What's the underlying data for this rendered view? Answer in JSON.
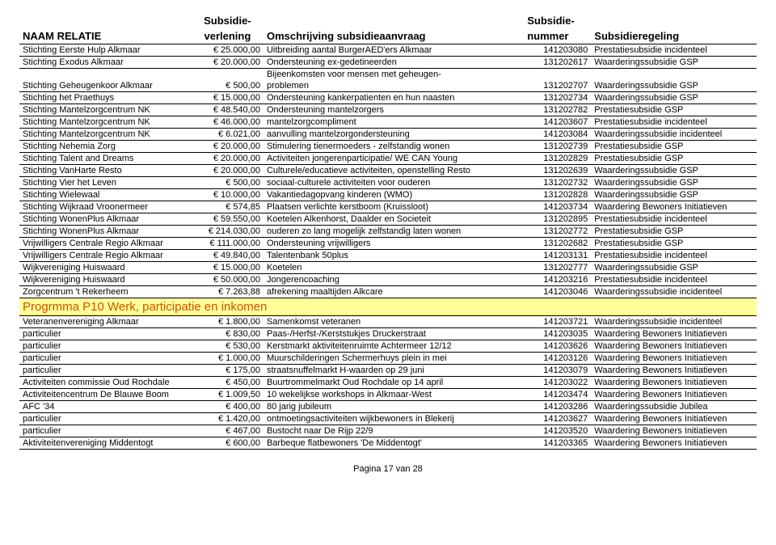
{
  "header": {
    "col1": "NAAM RELATIE",
    "col2_l1": "Subsidie-",
    "col2_l2": "verlening",
    "col3": "Omschrijving subsidieaanvraag",
    "col4_l1": "Subsidie-",
    "col4_l2": "nummer",
    "col5": "Subsidieregeling"
  },
  "rows1": [
    {
      "name": "Stichting Eerste Hulp Alkmaar",
      "amt": "€ 25.000,00",
      "desc": "Uitbreiding aantal BurgerAED'ers Alkmaar",
      "nr": "141203080",
      "reg": "Prestatiesubsidie incidenteel"
    },
    {
      "name": "Stichting Exodus Alkmaar",
      "amt": "€ 20.000,00",
      "desc": "Ondersteuning ex-gedetineerden",
      "nr": "131202617",
      "reg": "Waarderingssubsidie GSP"
    },
    {
      "name": "",
      "amt": "",
      "desc": "Bijeenkomsten voor mensen met geheugen-",
      "nr": "",
      "reg": ""
    },
    {
      "name": "Stichting Geheugenkoor Alkmaar",
      "amt": "€ 500,00",
      "desc": "problemen",
      "nr": "131202707",
      "reg": "Waarderingssubsidie GSP"
    },
    {
      "name": "Stichting het Praethuys",
      "amt": "€ 15.000,00",
      "desc": "Ondersteuning kankerpatienten en hun naasten",
      "nr": "131202734",
      "reg": "Waarderingssubsidie GSP"
    },
    {
      "name": "Stichting Mantelzorgcentrum NK",
      "amt": "€ 48.540,00",
      "desc": "Ondersteuning mantelzorgers",
      "nr": "131202782",
      "reg": "Prestatiesubsidie GSP"
    },
    {
      "name": "Stichting Mantelzorgcentrum NK",
      "amt": "€ 46.000,00",
      "desc": "mantelzorgcompliment",
      "nr": "141203607",
      "reg": "Prestatiesubsidie incidenteel"
    },
    {
      "name": "Stichting Mantelzorgcentrum NK",
      "amt": "€ 6.021,00",
      "desc": "aanvulling mantelzorgondersteuning",
      "nr": "141203084",
      "reg": "Waarderingssubsidie incidenteel"
    },
    {
      "name": "Stichting Nehemia Zorg",
      "amt": "€ 20.000,00",
      "desc": "Stimulering tienermoeders - zelfstandig wonen",
      "nr": "131202739",
      "reg": "Prestatiesubsidie GSP"
    },
    {
      "name": "Stichting Talent and Dreams",
      "amt": "€ 20.000,00",
      "desc": "Activiteiten jongerenparticipatie/ WE CAN Young",
      "nr": "131202829",
      "reg": "Prestatiesubsidie GSP"
    },
    {
      "name": "Stichting VanHarte Resto",
      "amt": "€ 20.000,00",
      "desc": "Culturele/educatieve activiteiten, openstelling Resto",
      "nr": "131202639",
      "reg": "Waarderingssubsidie GSP"
    },
    {
      "name": "Stichting Vier het Leven",
      "amt": "€ 500,00",
      "desc": "sociaal-culturele activiteiten voor ouderen",
      "nr": "131202732",
      "reg": "Waarderingssubsidie GSP"
    },
    {
      "name": "Stichting Wielewaal",
      "amt": "€ 10.000,00",
      "desc": "Vakantiedagopvang kinderen (WMO)",
      "nr": "131202828",
      "reg": "Waarderingssubsidie GSP"
    },
    {
      "name": "Stichting Wijkraad Vroonermeer",
      "amt": "€ 574,85",
      "desc": "Plaatsen verlichte kerstboom (Kruissloot)",
      "nr": "141203734",
      "reg": "Waardering Bewoners Initiatieven"
    },
    {
      "name": "Stichting WonenPlus Alkmaar",
      "amt": "€ 59.550,00",
      "desc": "Koetelen Alkenhorst, Daalder en Societeit",
      "nr": "131202895",
      "reg": "Prestatiesubsidie incidenteel"
    },
    {
      "name": "Stichting WonenPlus Alkmaar",
      "amt": "€ 214.030,00",
      "desc": "ouderen zo lang mogelijk zelfstandig laten wonen",
      "nr": "131202772",
      "reg": "Prestatiesubsidie GSP"
    },
    {
      "name": "Vrijwilligers Centrale Regio Alkmaar",
      "amt": "€ 111.000,00",
      "desc": "Ondersteuning vrijwilligers",
      "nr": "131202682",
      "reg": "Prestatiesubsidie GSP"
    },
    {
      "name": "Vrijwilligers Centrale Regio Alkmaar",
      "amt": "€ 49.840,00",
      "desc": "Talentenbank 50plus",
      "nr": "141203131",
      "reg": "Prestatiesubsidie incidenteel"
    },
    {
      "name": "Wijkvereniging Huiswaard",
      "amt": "€ 15.000,00",
      "desc": "Koetelen",
      "nr": "131202777",
      "reg": "Waarderingssubsidie GSP"
    },
    {
      "name": "Wijkvereniging Huiswaard",
      "amt": "€ 50.000,00",
      "desc": "Jongerencoaching",
      "nr": "141203216",
      "reg": "Prestatiesubsidie incidenteel"
    },
    {
      "name": "Zorgcentrum 't Rekerheem",
      "amt": "€ 7.263,88",
      "desc": "afrekening maaltijden Alkcare",
      "nr": "141203046",
      "reg": "Waarderingssubsidie incidenteel"
    }
  ],
  "section2": "Progrmma P10 Werk, participatie en inkomen",
  "rows2_first": {
    "name": "Veteranenvereniging Alkmaar",
    "amt": "€ 1.800,00",
    "desc": "Samenkomst veteranen",
    "nr": "141203721",
    "reg": "Waarderingssubsidie incidenteel"
  },
  "rows2": [
    {
      "name": "particulier",
      "amt": "€ 830,00",
      "desc": "Paas-/Herfst-/Kerststukjes Druckerstraat",
      "nr": "141203035",
      "reg": "Waardering Bewoners Initiatieven"
    },
    {
      "name": "particulier",
      "amt": "€ 530,00",
      "desc": "Kerstmarkt aktiviteitenruimte Achtermeer 12/12",
      "nr": "141203626",
      "reg": "Waardering Bewoners Initiatieven"
    },
    {
      "name": "particulier",
      "amt": "€ 1.000,00",
      "desc": "Muurschilderingen Schermerhuys plein in mei",
      "nr": "141203126",
      "reg": "Waardering Bewoners Initiatieven"
    },
    {
      "name": "particulier",
      "amt": "€ 175,00",
      "desc": "straatsnuffelmarkt H-waarden op 29 juni",
      "nr": "141203079",
      "reg": "Waardering Bewoners Initiatieven"
    },
    {
      "name": "Activiteiten commissie Oud Rochdale",
      "amt": "€ 450,00",
      "desc": "Buurtrommelmarkt Oud Rochdale op 14 april",
      "nr": "141203022",
      "reg": "Waardering Bewoners Initiatieven"
    },
    {
      "name": "Activiteitencentrum De Blauwe Boom",
      "amt": "€ 1.009,50",
      "desc": "10 wekelijkse workshops in Alkmaar-West",
      "nr": "141203474",
      "reg": "Waardering Bewoners Initiatieven"
    },
    {
      "name": "AFC '34",
      "amt": "€ 400,00",
      "desc": "80 jarig jubileum",
      "nr": "141203286",
      "reg": "Waarderingssubsidie Jubilea"
    },
    {
      "name": "particulier",
      "amt": "€ 1.420,00",
      "desc": "ontmoetingsactiviteiten wijkbewoners in Blekerij",
      "nr": "141203627",
      "reg": "Waardering Bewoners Initiatieven"
    },
    {
      "name": "particulier",
      "amt": "€ 467,00",
      "desc": "Bustocht naar De Rijp 22/9",
      "nr": "141203520",
      "reg": "Waardering Bewoners Initiatieven"
    },
    {
      "name": "Aktiviteitenvereniging Middentogt",
      "amt": "€ 600,00",
      "desc": "Barbeque flatbewoners 'De Middentogt'",
      "nr": "141203365",
      "reg": "Waardering Bewoners Initiatieven"
    }
  ],
  "footer": "Pagina 17 van 28"
}
